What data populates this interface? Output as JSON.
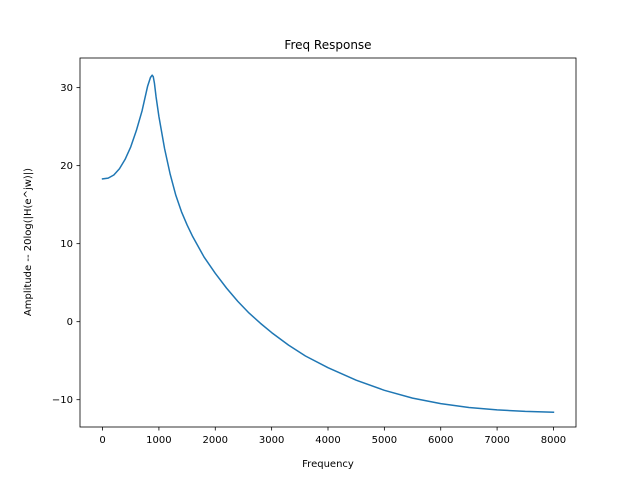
{
  "chart_data": {
    "type": "line",
    "title": "Freq Response",
    "xlabel": "Frequency",
    "ylabel": "Amplitude -- 20log(|H(e^jw)|)",
    "xlim": [
      -400,
      8400
    ],
    "ylim": [
      -13.5,
      33.8
    ],
    "xticks": [
      0,
      1000,
      2000,
      3000,
      4000,
      5000,
      6000,
      7000,
      8000
    ],
    "xtick_labels": [
      "0",
      "1000",
      "2000",
      "3000",
      "4000",
      "5000",
      "6000",
      "7000",
      "8000"
    ],
    "yticks": [
      -10,
      0,
      10,
      20,
      30
    ],
    "ytick_labels": [
      "−10",
      "0",
      "10",
      "20",
      "30"
    ],
    "grid": false,
    "series": [
      {
        "color": "#1f77b4",
        "x": [
          0,
          100,
          200,
          300,
          400,
          500,
          600,
          700,
          800,
          850,
          880,
          900,
          920,
          950,
          1000,
          1100,
          1200,
          1300,
          1400,
          1500,
          1600,
          1800,
          2000,
          2200,
          2400,
          2600,
          2800,
          3000,
          3300,
          3600,
          4000,
          4500,
          5000,
          5500,
          6000,
          6500,
          7000,
          7500,
          8000
        ],
        "y": [
          18.3,
          18.4,
          18.8,
          19.6,
          20.8,
          22.4,
          24.5,
          27.0,
          30.2,
          31.3,
          31.6,
          31.4,
          30.6,
          28.8,
          26.3,
          22.2,
          18.9,
          16.2,
          14.1,
          12.4,
          10.9,
          8.3,
          6.2,
          4.3,
          2.6,
          1.1,
          -0.2,
          -1.4,
          -3.0,
          -4.4,
          -5.9,
          -7.5,
          -8.8,
          -9.8,
          -10.5,
          -11.0,
          -11.3,
          -11.5,
          -11.6
        ]
      }
    ]
  }
}
